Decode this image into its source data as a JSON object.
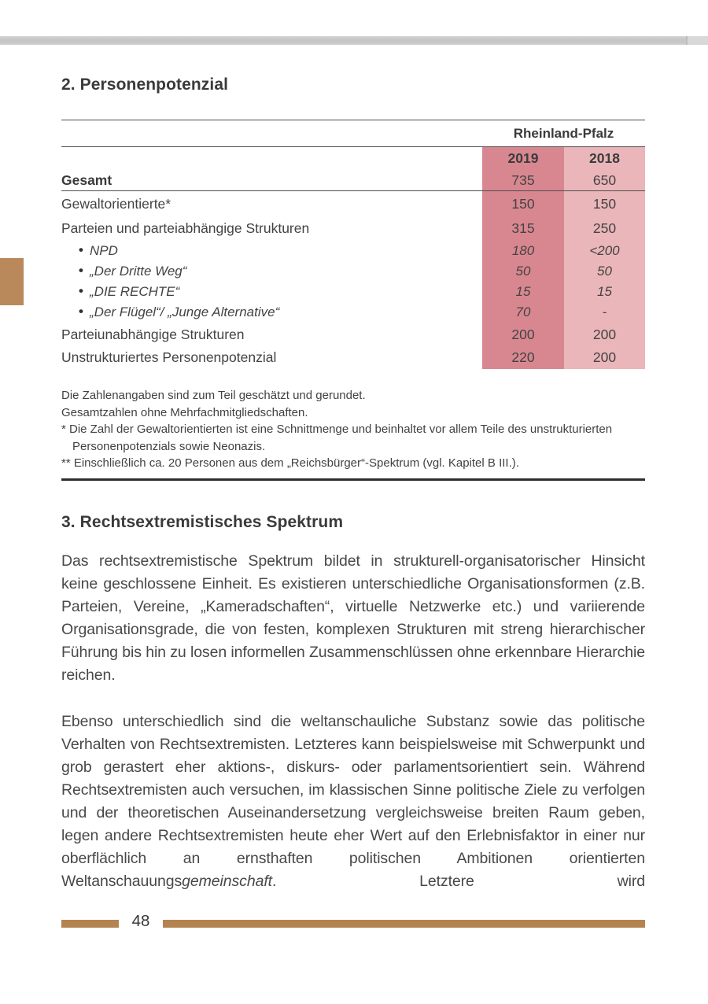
{
  "page": {
    "section2_title": "2. Personenpotenzial",
    "section3_title": "3. Rechtsextremistisches Spektrum",
    "page_number": "48"
  },
  "table": {
    "region_header": "Rheinland-Pfalz",
    "col_headers": [
      "2019",
      "2018"
    ],
    "rows": [
      {
        "label": "Gesamt",
        "y2019": "735",
        "y2018": "650"
      },
      {
        "label": "Gewaltorientierte*",
        "y2019": "150",
        "y2018": "150"
      },
      {
        "label": "Parteien und parteiabhängige Strukturen",
        "y2019": "315",
        "y2018": "250"
      },
      {
        "label": "NPD",
        "y2019": "180",
        "y2018": "<200"
      },
      {
        "label": "„Der Dritte Weg“",
        "y2019": "50",
        "y2018": "50"
      },
      {
        "label": "„DIE RECHTE“",
        "y2019": "15",
        "y2018": "15"
      },
      {
        "label": "„Der Flügel“/ „Junge Alternative“",
        "y2019": "70",
        "y2018": "-"
      },
      {
        "label": "Parteiunabhängige Strukturen",
        "y2019": "200",
        "y2018": "200"
      },
      {
        "label": "Unstrukturiertes Personenpotenzial",
        "y2019": "220",
        "y2018": "200"
      }
    ],
    "footnotes": [
      "Die Zahlenangaben sind zum Teil geschätzt und gerundet.",
      "Gesamtzahlen ohne Mehrfachmitgliedschaften.",
      "* Die Zahl der Gewaltorientierten ist eine Schnittmenge und beinhaltet vor allem Teile des unstrukturierten Personenpotenzials sowie Neonazis.",
      "** Einschließlich ca. 20 Personen aus dem „Reichsbürger“-Spektrum (vgl. Kapitel B III.)."
    ],
    "colors": {
      "col_2019_bg": "#d88791",
      "col_2018_bg": "#eab6ba"
    }
  },
  "content": {
    "paragraph1": "Das rechtsextremistische Spektrum bildet in strukturell-organisatorischer Hinsicht keine geschlossene Einheit. Es existieren unterschiedliche Organisationsformen (z.B. Parteien, Vereine, „Kameradschaften“, virtuelle Netzwerke etc.) und variierende Organisationsgrade, die von festen, komplexen Strukturen mit streng hierarchischer Führung bis hin zu losen informellen Zusammenschlüssen ohne erkennbare Hierarchie reichen.",
    "paragraph2_pre": "Ebenso unterschiedlich sind die weltanschauliche Substanz sowie das politische Verhalten von Rechtsextremisten. Letzteres kann beispielsweise mit Schwerpunkt und grob gerastert eher aktions-, diskurs- oder parlamentsorientiert sein. Während Rechtsextremisten auch versuchen, im klassischen Sinne politische Ziele zu verfolgen und der theoretischen Auseinandersetzung vergleichsweise breiten Raum geben, legen andere Rechtsextremisten heute eher Wert auf den Erlebnisfaktor in einer nur oberflächlich an ernsthaften politischen Ambitionen orientierten Weltanschauungs",
    "paragraph2_italic": "gemeinschaft",
    "paragraph2_post": ". Letztere wird"
  },
  "decor": {
    "accent_tan": "#b5834f",
    "tab_tan": "#b9895c",
    "edge_gray": "#c8c8c8"
  }
}
